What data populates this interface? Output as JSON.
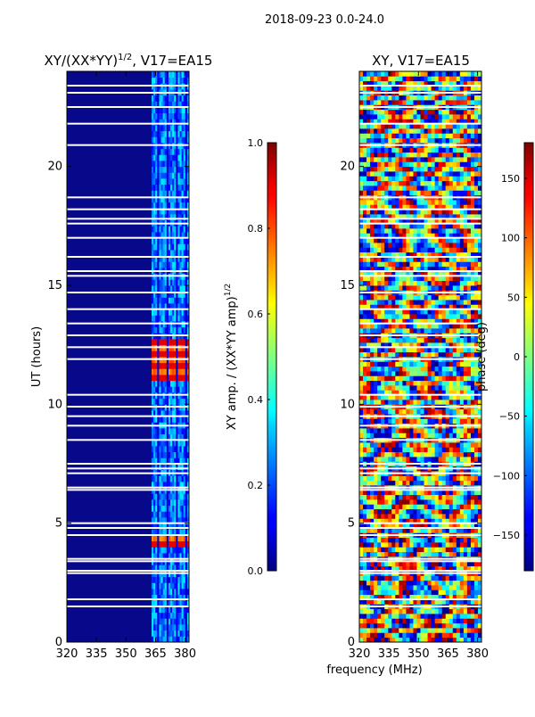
{
  "suptitle": "2018-09-23 0.0-24.0",
  "colors": {
    "background": "#ffffff",
    "axis": "#000000",
    "gap": "#ffffff",
    "amp_base": "#08088a"
  },
  "chart_data": [
    {
      "type": "heatmap",
      "id": "amplitude",
      "title_main": "XY/(XX*YY)",
      "title_sup": "1/2",
      "title_rest": ", V17=EA15",
      "xlabel": "",
      "ylabel": "UT (hours)",
      "xlim": [
        320,
        382
      ],
      "ylim": [
        0,
        24
      ],
      "xticks": [
        320,
        335,
        350,
        365,
        380
      ],
      "yticks": [
        0,
        5,
        10,
        15,
        20
      ],
      "colormap": "jet",
      "colorbar": {
        "label_main": "XY amp. / (XX*YY amp)",
        "label_sup": "1/2",
        "min": 0.0,
        "max": 1.0,
        "ticks": [
          "0.0",
          "0.2",
          "0.4",
          "0.6",
          "0.8",
          "1.0"
        ],
        "tick_values": [
          0.0,
          0.2,
          0.4,
          0.6,
          0.8,
          1.0
        ]
      },
      "gap_hours": [
        23.4,
        23.1,
        22.5,
        21.8,
        20.9,
        18.7,
        18.2,
        17.8,
        17.6,
        17.0,
        16.2,
        15.6,
        15.4,
        14.7,
        14.0,
        13.4,
        12.9,
        12.4,
        11.9,
        10.4,
        9.9,
        9.5,
        9.1,
        8.5,
        7.5,
        7.3,
        7.1,
        6.5,
        6.4,
        5.0,
        4.8,
        4.5,
        3.5,
        3.4,
        3.0,
        2.9,
        1.8,
        1.5
      ],
      "bright_features": [
        {
          "t0": 3.9,
          "t1": 4.7,
          "level": 0.9
        },
        {
          "t0": 11.0,
          "t1": 12.8,
          "level": 0.9
        }
      ]
    },
    {
      "type": "heatmap",
      "id": "phase",
      "title": "XY, V17=EA15",
      "xlabel": "frequency (MHz)",
      "ylabel": "",
      "xlim": [
        320,
        382
      ],
      "ylim": [
        0,
        24
      ],
      "xticks": [
        320,
        335,
        350,
        365,
        380
      ],
      "yticks": [
        0,
        5,
        10,
        15,
        20
      ],
      "colormap": "jet",
      "colorbar": {
        "label": "phase (deg)",
        "min": -180,
        "max": 180,
        "ticks": [
          "150",
          "100",
          "50",
          "0",
          "−50",
          "−100",
          "−150"
        ],
        "tick_values": [
          150,
          100,
          50,
          0,
          -50,
          -100,
          -150
        ]
      },
      "gap_hours": [
        23.4,
        23.1,
        22.5,
        21.8,
        20.9,
        18.7,
        18.2,
        17.8,
        17.6,
        17.0,
        16.2,
        15.6,
        15.4,
        14.7,
        14.0,
        13.4,
        12.9,
        12.4,
        11.9,
        10.4,
        9.9,
        9.5,
        9.1,
        8.5,
        7.5,
        7.3,
        7.1,
        6.5,
        6.4,
        5.0,
        4.8,
        4.5,
        3.5,
        3.4,
        3.0,
        2.9,
        1.8,
        1.5
      ]
    }
  ]
}
